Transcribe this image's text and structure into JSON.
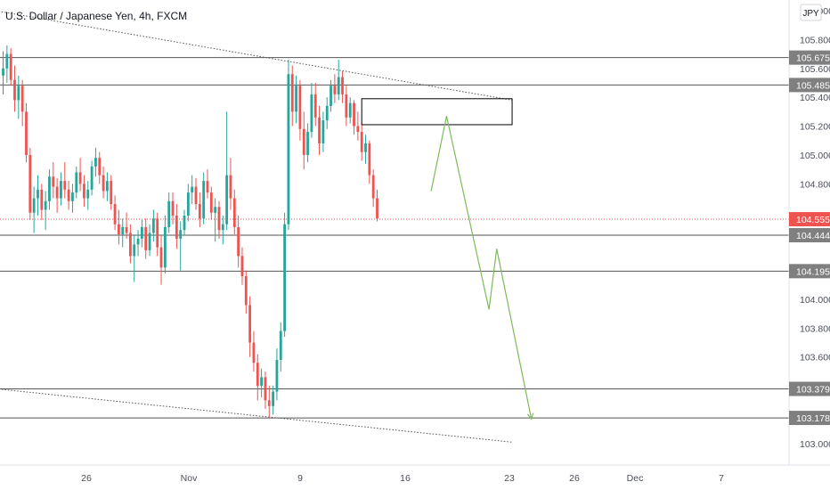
{
  "header": {
    "title": "U.S. Dollar / Japanese Yen, 4h, FXCM",
    "currency": "JPY"
  },
  "colors": {
    "up": "#26a69a",
    "down": "#ef5350",
    "level_line": "#555555",
    "level_tag": "#7f7f7f",
    "current_price": "#ef5350",
    "projection": "#7dbb5a",
    "zone_border": "#000000",
    "trend_line": "#555555"
  },
  "chart_data": {
    "type": "candlestick",
    "title": "U.S. Dollar / Japanese Yen, 4h, FXCM",
    "y_unit": "JPY",
    "ylim": [
      102.95,
      106.0
    ],
    "y_ticks": [
      103.0,
      103.2,
      103.4,
      103.6,
      103.8,
      104.0,
      104.2,
      104.4,
      104.6,
      104.8,
      105.0,
      105.2,
      105.4,
      105.6,
      105.8,
      106.0
    ],
    "y_tick_labels": [
      "103.000",
      "",
      "",
      "103.600",
      "103.800",
      "104.000",
      "",
      "",
      "",
      "104.800",
      "105.000",
      "105.200",
      "105.400",
      "105.600",
      "105.800",
      "106.000"
    ],
    "x_labels": [
      "26",
      "Nov",
      "9",
      "16",
      "23",
      "26",
      "Dec",
      "7"
    ],
    "current_price": 104.555,
    "horizontal_levels": [
      105.675,
      105.485,
      104.444,
      104.195,
      103.379,
      103.178
    ],
    "level_labels": [
      "105.675",
      "105.485",
      "104.444",
      "104.195",
      "103.379",
      "103.178"
    ],
    "current_price_label": "104.555",
    "trendlines": [
      {
        "from": {
          "bar": -2,
          "price": 106.0
        },
        "to": {
          "bar": 132,
          "price": 105.38
        }
      },
      {
        "from": {
          "bar": -2,
          "price": 103.38
        },
        "to": {
          "bar": 132,
          "price": 103.01
        }
      }
    ],
    "zone": {
      "bar_start": 93,
      "bar_end": 132,
      "price_top": 105.39,
      "price_bottom": 105.21
    },
    "projection_path": [
      {
        "bar": 111,
        "price": 104.75
      },
      {
        "bar": 115,
        "price": 105.27
      },
      {
        "bar": 126,
        "price": 103.93
      },
      {
        "bar": 128,
        "price": 104.35
      },
      {
        "bar": 137,
        "price": 103.17
      }
    ],
    "ohlc": [
      [
        105.55,
        105.72,
        105.42,
        105.6
      ],
      [
        105.6,
        105.76,
        105.5,
        105.7
      ],
      [
        105.7,
        105.74,
        105.48,
        105.52
      ],
      [
        105.52,
        105.62,
        105.3,
        105.38
      ],
      [
        105.38,
        105.55,
        105.25,
        105.48
      ],
      [
        105.48,
        105.52,
        105.2,
        105.3
      ],
      [
        105.3,
        105.36,
        104.95,
        105.0
      ],
      [
        105.0,
        105.05,
        104.55,
        104.6
      ],
      [
        104.6,
        104.78,
        104.46,
        104.7
      ],
      [
        104.7,
        104.86,
        104.58,
        104.76
      ],
      [
        104.76,
        104.8,
        104.55,
        104.62
      ],
      [
        104.62,
        104.75,
        104.48,
        104.68
      ],
      [
        104.68,
        104.9,
        104.62,
        104.85
      ],
      [
        104.85,
        104.95,
        104.7,
        104.78
      ],
      [
        104.78,
        104.84,
        104.6,
        104.7
      ],
      [
        104.7,
        104.88,
        104.65,
        104.82
      ],
      [
        104.82,
        104.95,
        104.7,
        104.76
      ],
      [
        104.76,
        104.82,
        104.62,
        104.68
      ],
      [
        104.68,
        104.8,
        104.6,
        104.74
      ],
      [
        104.74,
        104.92,
        104.7,
        104.88
      ],
      [
        104.88,
        104.98,
        104.75,
        104.8
      ],
      [
        104.8,
        104.86,
        104.64,
        104.7
      ],
      [
        104.7,
        104.82,
        104.62,
        104.76
      ],
      [
        104.76,
        104.96,
        104.72,
        104.92
      ],
      [
        104.92,
        105.05,
        104.85,
        104.98
      ],
      [
        104.98,
        105.02,
        104.8,
        104.86
      ],
      [
        104.86,
        104.92,
        104.7,
        104.75
      ],
      [
        104.75,
        104.88,
        104.68,
        104.82
      ],
      [
        104.82,
        104.86,
        104.62,
        104.66
      ],
      [
        104.66,
        104.72,
        104.48,
        104.52
      ],
      [
        104.52,
        104.62,
        104.38,
        104.45
      ],
      [
        104.45,
        104.56,
        104.36,
        104.5
      ],
      [
        104.5,
        104.6,
        104.42,
        104.46
      ],
      [
        104.46,
        104.52,
        104.25,
        104.3
      ],
      [
        104.3,
        104.44,
        104.12,
        104.38
      ],
      [
        104.38,
        104.48,
        104.3,
        104.42
      ],
      [
        104.42,
        104.55,
        104.36,
        104.5
      ],
      [
        104.5,
        104.56,
        104.28,
        104.34
      ],
      [
        104.34,
        104.52,
        104.3,
        104.46
      ],
      [
        104.46,
        104.62,
        104.4,
        104.56
      ],
      [
        104.56,
        104.6,
        104.3,
        104.36
      ],
      [
        104.36,
        104.44,
        104.1,
        104.22
      ],
      [
        104.22,
        104.58,
        104.18,
        104.5
      ],
      [
        104.5,
        104.74,
        104.46,
        104.68
      ],
      [
        104.68,
        104.74,
        104.52,
        104.58
      ],
      [
        104.58,
        104.66,
        104.35,
        104.42
      ],
      [
        104.42,
        104.54,
        104.2,
        104.48
      ],
      [
        104.48,
        104.62,
        104.44,
        104.58
      ],
      [
        104.58,
        104.8,
        104.54,
        104.74
      ],
      [
        104.74,
        104.86,
        104.66,
        104.78
      ],
      [
        104.78,
        104.84,
        104.62,
        104.66
      ],
      [
        104.66,
        104.74,
        104.5,
        104.56
      ],
      [
        104.56,
        104.88,
        104.52,
        104.82
      ],
      [
        104.82,
        104.9,
        104.7,
        104.74
      ],
      [
        104.74,
        104.78,
        104.55,
        104.6
      ],
      [
        104.6,
        104.7,
        104.4,
        104.64
      ],
      [
        104.64,
        104.68,
        104.42,
        104.48
      ],
      [
        104.48,
        104.58,
        104.38,
        104.52
      ],
      [
        104.52,
        105.3,
        104.48,
        104.86
      ],
      [
        104.86,
        104.98,
        104.62,
        104.7
      ],
      [
        104.7,
        104.76,
        104.45,
        104.5
      ],
      [
        104.5,
        104.58,
        104.22,
        104.3
      ],
      [
        104.3,
        104.36,
        104.1,
        104.16
      ],
      [
        104.16,
        104.2,
        103.9,
        103.96
      ],
      [
        103.96,
        104.02,
        103.6,
        103.7
      ],
      [
        103.7,
        103.78,
        103.5,
        103.56
      ],
      [
        103.56,
        103.62,
        103.3,
        103.4
      ],
      [
        103.4,
        103.52,
        103.32,
        103.46
      ],
      [
        103.46,
        103.5,
        103.24,
        103.3
      ],
      [
        103.3,
        103.4,
        103.18,
        103.26
      ],
      [
        103.26,
        103.4,
        103.2,
        103.36
      ],
      [
        103.36,
        103.66,
        103.3,
        103.58
      ],
      [
        103.58,
        103.84,
        103.5,
        103.78
      ],
      [
        103.78,
        104.6,
        103.74,
        104.52
      ],
      [
        104.52,
        105.66,
        104.48,
        105.56
      ],
      [
        105.56,
        105.62,
        105.2,
        105.3
      ],
      [
        105.3,
        105.55,
        105.22,
        105.48
      ],
      [
        105.48,
        105.52,
        105.1,
        105.18
      ],
      [
        105.18,
        105.3,
        104.9,
        105.0
      ],
      [
        105.0,
        105.22,
        104.95,
        105.16
      ],
      [
        105.16,
        105.5,
        105.12,
        105.42
      ],
      [
        105.42,
        105.5,
        105.2,
        105.26
      ],
      [
        105.26,
        105.34,
        105.0,
        105.08
      ],
      [
        105.08,
        105.3,
        105.02,
        105.24
      ],
      [
        105.24,
        105.4,
        105.18,
        105.34
      ],
      [
        105.34,
        105.52,
        105.3,
        105.48
      ],
      [
        105.48,
        105.56,
        105.36,
        105.42
      ],
      [
        105.42,
        105.66,
        105.38,
        105.54
      ],
      [
        105.54,
        105.58,
        105.36,
        105.42
      ],
      [
        105.42,
        105.48,
        105.2,
        105.26
      ],
      [
        105.26,
        105.4,
        105.22,
        105.36
      ],
      [
        105.36,
        105.38,
        105.14,
        105.2
      ],
      [
        105.2,
        105.3,
        105.1,
        105.16
      ],
      [
        105.16,
        105.22,
        104.96,
        105.02
      ],
      [
        105.02,
        105.14,
        104.94,
        105.08
      ],
      [
        105.08,
        105.1,
        104.8,
        104.86
      ],
      [
        104.86,
        104.9,
        104.64,
        104.7
      ],
      [
        104.7,
        104.76,
        104.54,
        104.56
      ]
    ]
  }
}
